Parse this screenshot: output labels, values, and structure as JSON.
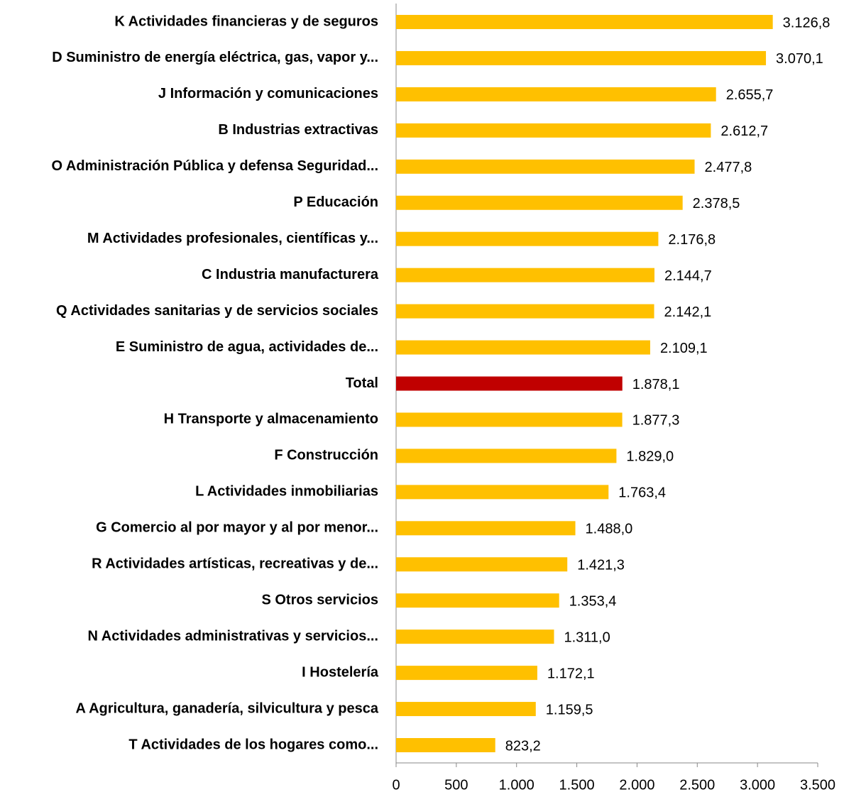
{
  "chart_data": {
    "type": "barh",
    "categories": [
      "K  Actividades financieras y de seguros",
      "D  Suministro de energía eléctrica, gas, vapor y...",
      "J  Información y comunicaciones",
      "B  Industrias extractivas",
      "O  Administración Pública y defensa Seguridad...",
      "P  Educación",
      "M  Actividades profesionales, científicas y...",
      "C  Industria manufacturera",
      "Q  Actividades sanitarias y de servicios sociales",
      "E  Suministro de agua, actividades de...",
      "Total",
      "H  Transporte y almacenamiento",
      "F  Construcción",
      "L  Actividades inmobiliarias",
      "G  Comercio al por mayor y al por menor...",
      "R  Actividades artísticas, recreativas y de...",
      "S  Otros servicios",
      "N  Actividades administrativas y servicios...",
      "I  Hostelería",
      "A  Agricultura, ganadería, silvicultura y pesca",
      "T  Actividades de los hogares como..."
    ],
    "values": [
      3126.8,
      3070.1,
      2655.7,
      2612.7,
      2477.8,
      2378.5,
      2176.8,
      2144.7,
      2142.1,
      2109.1,
      1878.1,
      1877.3,
      1829.0,
      1763.4,
      1488.0,
      1421.3,
      1353.4,
      1311.0,
      1172.1,
      1159.5,
      823.2
    ],
    "value_labels": [
      "3.126,8",
      "3.070,1",
      "2.655,7",
      "2.612,7",
      "2.477,8",
      "2.378,5",
      "2.176,8",
      "2.144,7",
      "2.142,1",
      "2.109,1",
      "1.878,1",
      "1.877,3",
      "1.829,0",
      "1.763,4",
      "1.488,0",
      "1.421,3",
      "1.353,4",
      "1.311,0",
      "1.172,1",
      "1.159,5",
      "823,2"
    ],
    "colors": [
      "#ffc000",
      "#ffc000",
      "#ffc000",
      "#ffc000",
      "#ffc000",
      "#ffc000",
      "#ffc000",
      "#ffc000",
      "#ffc000",
      "#ffc000",
      "#c00000",
      "#ffc000",
      "#ffc000",
      "#ffc000",
      "#ffc000",
      "#ffc000",
      "#ffc000",
      "#ffc000",
      "#ffc000",
      "#ffc000",
      "#ffc000"
    ],
    "xlim": [
      0,
      3500
    ],
    "xticks": [
      0,
      500,
      {
        "value": 1000,
        "label": "1.000"
      },
      {
        "value": 1500,
        "label": "1.500"
      },
      {
        "value": 2000,
        "label": "2.000"
      },
      {
        "value": 2500,
        "label": "2.500"
      },
      {
        "value": 3000,
        "label": "3.000"
      },
      {
        "value": 3500,
        "label": "3.500"
      }
    ]
  }
}
